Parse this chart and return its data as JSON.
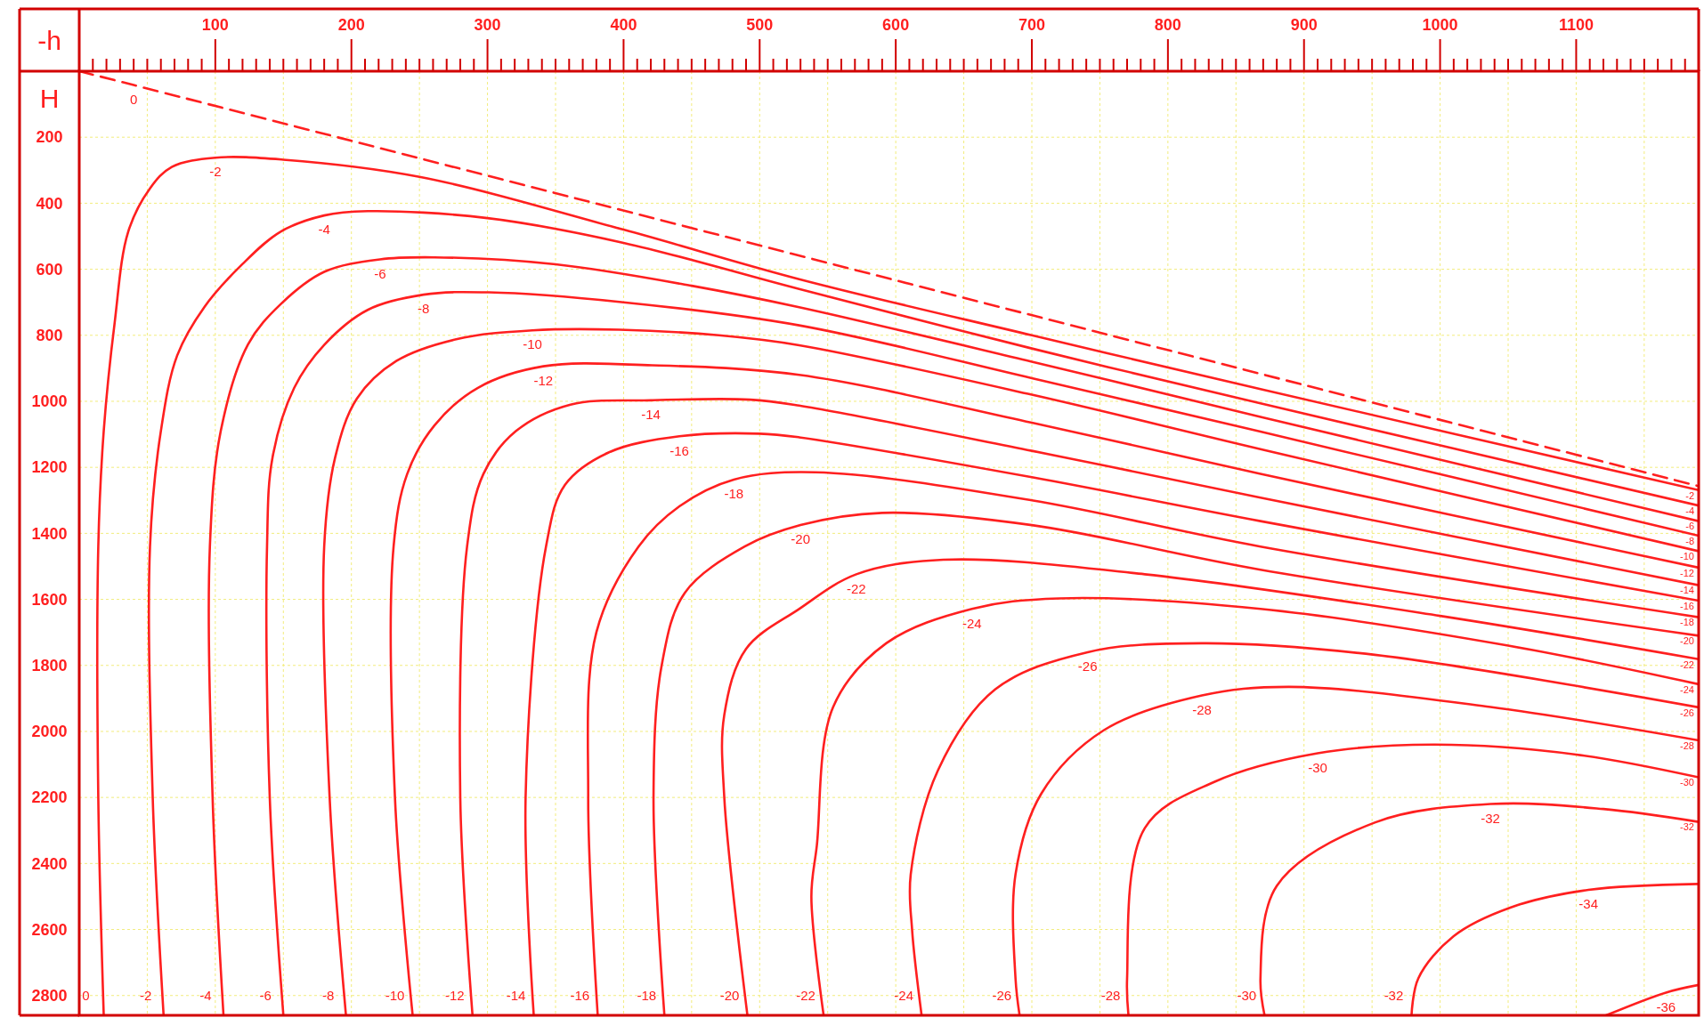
{
  "chart_data": {
    "type": "line",
    "xlabel": "-h",
    "ylabel": "H",
    "xlim": [
      0,
      1190
    ],
    "ylim": [
      2860,
      0
    ],
    "grid": true,
    "xticks": [
      {
        "value": 10,
        "label": null
      },
      {
        "value": 20,
        "label": null
      },
      {
        "value": 30,
        "label": null
      },
      {
        "value": 40,
        "label": null
      },
      {
        "value": 50,
        "label": null
      },
      {
        "value": 60,
        "label": null
      },
      {
        "value": 70,
        "label": null
      },
      {
        "value": 80,
        "label": null
      },
      {
        "value": 90,
        "label": null
      },
      100,
      {
        "value": 110,
        "label": null
      },
      {
        "value": 120,
        "label": null
      },
      {
        "value": 130,
        "label": null
      },
      {
        "value": 140,
        "label": null
      },
      {
        "value": 150,
        "label": null
      },
      {
        "value": 160,
        "label": null
      },
      {
        "value": 170,
        "label": null
      },
      {
        "value": 180,
        "label": null
      },
      {
        "value": 190,
        "label": null
      },
      200,
      {
        "value": 210,
        "label": null
      },
      {
        "value": 220,
        "label": null
      },
      {
        "value": 230,
        "label": null
      },
      {
        "value": 240,
        "label": null
      },
      {
        "value": 250,
        "label": null
      },
      {
        "value": 260,
        "label": null
      },
      {
        "value": 270,
        "label": null
      },
      {
        "value": 280,
        "label": null
      },
      {
        "value": 290,
        "label": null
      },
      300,
      {
        "value": 310,
        "label": null
      },
      {
        "value": 320,
        "label": null
      },
      {
        "value": 330,
        "label": null
      },
      {
        "value": 340,
        "label": null
      },
      {
        "value": 350,
        "label": null
      },
      {
        "value": 360,
        "label": null
      },
      {
        "value": 370,
        "label": null
      },
      {
        "value": 380,
        "label": null
      },
      {
        "value": 390,
        "label": null
      },
      400,
      {
        "value": 410,
        "label": null
      },
      {
        "value": 420,
        "label": null
      },
      {
        "value": 430,
        "label": null
      },
      {
        "value": 440,
        "label": null
      },
      {
        "value": 450,
        "label": null
      },
      {
        "value": 460,
        "label": null
      },
      {
        "value": 470,
        "label": null
      },
      {
        "value": 480,
        "label": null
      },
      {
        "value": 490,
        "label": null
      },
      500,
      {
        "value": 510,
        "label": null
      },
      {
        "value": 520,
        "label": null
      },
      {
        "value": 530,
        "label": null
      },
      {
        "value": 540,
        "label": null
      },
      {
        "value": 550,
        "label": null
      },
      {
        "value": 560,
        "label": null
      },
      {
        "value": 570,
        "label": null
      },
      {
        "value": 580,
        "label": null
      },
      {
        "value": 590,
        "label": null
      },
      600,
      {
        "value": 610,
        "label": null
      },
      {
        "value": 620,
        "label": null
      },
      {
        "value": 630,
        "label": null
      },
      {
        "value": 640,
        "label": null
      },
      {
        "value": 650,
        "label": null
      },
      {
        "value": 660,
        "label": null
      },
      {
        "value": 670,
        "label": null
      },
      {
        "value": 680,
        "label": null
      },
      {
        "value": 690,
        "label": null
      },
      700,
      {
        "value": 710,
        "label": null
      },
      {
        "value": 720,
        "label": null
      },
      {
        "value": 730,
        "label": null
      },
      {
        "value": 740,
        "label": null
      },
      {
        "value": 750,
        "label": null
      },
      {
        "value": 760,
        "label": null
      },
      {
        "value": 770,
        "label": null
      },
      {
        "value": 780,
        "label": null
      },
      {
        "value": 790,
        "label": null
      },
      800,
      {
        "value": 810,
        "label": null
      },
      {
        "value": 820,
        "label": null
      },
      {
        "value": 830,
        "label": null
      },
      {
        "value": 840,
        "label": null
      },
      {
        "value": 850,
        "label": null
      },
      {
        "value": 860,
        "label": null
      },
      {
        "value": 870,
        "label": null
      },
      {
        "value": 880,
        "label": null
      },
      {
        "value": 890,
        "label": null
      },
      900,
      {
        "value": 910,
        "label": null
      },
      {
        "value": 920,
        "label": null
      },
      {
        "value": 930,
        "label": null
      },
      {
        "value": 940,
        "label": null
      },
      {
        "value": 950,
        "label": null
      },
      {
        "value": 960,
        "label": null
      },
      {
        "value": 970,
        "label": null
      },
      {
        "value": 980,
        "label": null
      },
      {
        "value": 990,
        "label": null
      },
      1000,
      {
        "value": 1010,
        "label": null
      },
      {
        "value": 1020,
        "label": null
      },
      {
        "value": 1030,
        "label": null
      },
      {
        "value": 1040,
        "label": null
      },
      {
        "value": 1050,
        "label": null
      },
      {
        "value": 1060,
        "label": null
      },
      {
        "value": 1070,
        "label": null
      },
      {
        "value": 1080,
        "label": null
      },
      {
        "value": 1090,
        "label": null
      },
      1100,
      {
        "value": 1110,
        "label": null
      },
      {
        "value": 1120,
        "label": null
      },
      {
        "value": 1130,
        "label": null
      },
      {
        "value": 1140,
        "label": null
      },
      {
        "value": 1150,
        "label": null
      },
      {
        "value": 1160,
        "label": null
      },
      {
        "value": 1170,
        "label": null
      },
      {
        "value": 1180,
        "label": null
      }
    ],
    "yticks": [
      200,
      400,
      600,
      800,
      1000,
      1200,
      1400,
      1600,
      1800,
      2000,
      2200,
      2400,
      2600,
      2800
    ],
    "series": [
      {
        "color": "#ff1f1f",
        "line_style": "dashed",
        "x": [
          0,
          40,
          1190
        ],
        "values": [
          0,
          42,
          1257
        ]
      },
      {
        "color": "#ff1f1f",
        "x": [
          18,
          14,
          14,
          18,
          26,
          36,
          52,
          68,
          100,
          150,
          250,
          400,
          529,
          700,
          868,
          1190
        ],
        "values": [
          2860,
          2200,
          1440,
          1090,
          763,
          486,
          355,
          290,
          262,
          268,
          320,
          480,
          630,
          800,
          963,
          1269
        ]
      },
      {
        "color": "#ff1f1f",
        "x": [
          62,
          54,
          52,
          60,
          72,
          92,
          120,
          148,
          180,
          212,
          300,
          400,
          529,
          700,
          868,
          1190
        ],
        "values": [
          2860,
          2200,
          1440,
          1090,
          861,
          714,
          584,
          486,
          437,
          424,
          445,
          520,
          660,
          840,
          1006,
          1316
        ]
      },
      {
        "color": "#ff1f1f",
        "x": [
          106,
          98,
          96,
          104,
          124,
          148,
          180,
          221,
          261,
          350,
          450,
          529,
          700,
          868,
          1190
        ],
        "values": [
          2860,
          2200,
          1440,
          1090,
          828,
          706,
          608,
          570,
          564,
          585,
          650,
          715,
          880,
          1047,
          1363
        ]
      },
      {
        "color": "#ff1f1f",
        "x": [
          150,
          140,
          138,
          142,
          158,
          180,
          212,
          253,
          301,
          400,
          529,
          700,
          868,
          1190
        ],
        "values": [
          2860,
          2200,
          1440,
          1171,
          959,
          829,
          723,
          677,
          670,
          700,
          770,
          930,
          1092,
          1407
        ]
      },
      {
        "color": "#ff1f1f",
        "x": [
          196,
          184,
          180,
          188,
          204,
          233,
          277,
          333,
          397,
          470,
          529,
          700,
          868,
          1190
        ],
        "values": [
          2860,
          2200,
          1440,
          1171,
          992,
          878,
          812,
          785,
          783,
          800,
          830,
          980,
          1145,
          1454
        ]
      },
      {
        "color": "#ff1f1f",
        "x": [
          245,
          232,
          231,
          241,
          261,
          293,
          341,
          421,
          529,
          700,
          868,
          1190
        ],
        "values": [
          2860,
          2200,
          1440,
          1220,
          1073,
          959,
          894,
          891,
          920,
          1065,
          1220,
          1504
        ]
      },
      {
        "color": "#ff1f1f",
        "x": [
          289,
          280,
          285,
          297,
          321,
          361,
          420,
          493,
          529,
          700,
          868,
          1190
        ],
        "values": [
          2860,
          2200,
          1440,
          1220,
          1090,
          1010,
          997,
          995,
          1013,
          1150,
          1292,
          1557
        ]
      },
      {
        "color": "#ff1f1f",
        "x": [
          334,
          328,
          343,
          357,
          389,
          441,
          500,
          529,
          700,
          868,
          1190
        ],
        "values": [
          2860,
          2200,
          1440,
          1253,
          1155,
          1106,
          1098,
          1109,
          1230,
          1363,
          1604
        ]
      },
      {
        "color": "#ff1f1f",
        "x": [
          381,
          374,
          380,
          411,
          441,
          481,
          541,
          700,
          868,
          1190
        ],
        "values": [
          2860,
          2200,
          1700,
          1440,
          1318,
          1237,
          1215,
          1300,
          1440,
          1654
        ]
      },
      {
        "color": "#ff1f1f",
        "x": [
          430,
          422,
          428,
          445,
          489,
          530,
          590,
          700,
          868,
          1190
        ],
        "values": [
          2860,
          2200,
          1800,
          1580,
          1440,
          1375,
          1338,
          1375,
          1510,
          1710
        ]
      },
      {
        "color": "#ff1f1f",
        "x": [
          491,
          474,
          474,
          490,
          529,
          571,
          635,
          783,
          1000,
          1190
        ],
        "values": [
          2860,
          2200,
          1950,
          1750,
          1629,
          1524,
          1480,
          1524,
          1650,
          1781
        ]
      },
      {
        "color": "#ff1f1f",
        "x": [
          547,
          538,
          542,
          554,
          593,
          656,
          720,
          868,
          1050,
          1190
        ],
        "values": [
          2860,
          2500,
          2346,
          1926,
          1733,
          1629,
          1597,
          1629,
          1740,
          1857
        ]
      },
      {
        "color": "#ff1f1f",
        "x": [
          619,
          612,
          611,
          631,
          673,
          741,
          825,
          952,
          1190
        ],
        "values": [
          2860,
          2600,
          2433,
          2118,
          1873,
          1760,
          1733,
          1768,
          1927
        ]
      },
      {
        "color": "#ff1f1f",
        "x": [
          691,
          688,
          688,
          707,
          753,
          825,
          889,
          1037,
          1190
        ],
        "values": [
          2860,
          2748,
          2433,
          2188,
          1996,
          1891,
          1865,
          1926,
          2027
        ]
      },
      {
        "color": "#ff1f1f",
        "x": [
          771,
          770,
          783,
          834,
          910,
          995,
          1100,
          1190
        ],
        "values": [
          2860,
          2748,
          2293,
          2153,
          2066,
          2040,
          2070,
          2139
        ]
      },
      {
        "color": "#ff1f1f",
        "x": [
          871,
          868,
          880,
          952,
          1037,
          1120,
          1190
        ],
        "values": [
          2860,
          2748,
          2468,
          2276,
          2220,
          2235,
          2274
        ]
      },
      {
        "color": "#ff1f1f",
        "x": [
          979,
          984,
          1010,
          1052,
          1109,
          1190
        ],
        "values": [
          2860,
          2748,
          2620,
          2533,
          2480,
          2462
        ]
      },
      {
        "color": "#ff1f1f",
        "x": [
          1122,
          1166,
          1190
        ],
        "values": [
          2860,
          2791,
          2768
        ]
      }
    ],
    "annotations": [
      {
        "text": "0",
        "x": 40,
        "y": 42
      },
      {
        "text": "-2",
        "x": 100,
        "y": 262
      },
      {
        "text": "-4",
        "x": 180,
        "y": 437
      },
      {
        "text": "-6",
        "x": 221,
        "y": 570
      },
      {
        "text": "-8",
        "x": 253,
        "y": 677
      },
      {
        "text": "-10",
        "x": 333,
        "y": 785
      },
      {
        "text": "-12",
        "x": 341,
        "y": 894
      },
      {
        "text": "-14",
        "x": 420,
        "y": 997
      },
      {
        "text": "-16",
        "x": 441,
        "y": 1106
      },
      {
        "text": "-18",
        "x": 481,
        "y": 1237
      },
      {
        "text": "-20",
        "x": 530,
        "y": 1375
      },
      {
        "text": "-22",
        "x": 571,
        "y": 1524
      },
      {
        "text": "-24",
        "x": 656,
        "y": 1629
      },
      {
        "text": "-26",
        "x": 741,
        "y": 1760
      },
      {
        "text": "-28",
        "x": 825,
        "y": 1891
      },
      {
        "text": "-30",
        "x": 910,
        "y": 2066
      },
      {
        "text": "-32",
        "x": 1037,
        "y": 2220
      },
      {
        "text": "-34",
        "x": 1109,
        "y": 2480
      },
      {
        "text": "-36",
        "x": 1166,
        "y": 2791
      },
      {
        "text": "0",
        "x": 18,
        "y": 2860
      },
      {
        "text": "-2",
        "x": 62,
        "y": 2860
      },
      {
        "text": "-4",
        "x": 106,
        "y": 2860
      },
      {
        "text": "-6",
        "x": 150,
        "y": 2860
      },
      {
        "text": "-8",
        "x": 196,
        "y": 2860
      },
      {
        "text": "-10",
        "x": 245,
        "y": 2860
      },
      {
        "text": "-12",
        "x": 289,
        "y": 2860
      },
      {
        "text": "-14",
        "x": 334,
        "y": 2860
      },
      {
        "text": "-16",
        "x": 381,
        "y": 2860
      },
      {
        "text": "-18",
        "x": 430,
        "y": 2860
      },
      {
        "text": "-20",
        "x": 491,
        "y": 2860
      },
      {
        "text": "-22",
        "x": 547,
        "y": 2860
      },
      {
        "text": "-24",
        "x": 619,
        "y": 2860
      },
      {
        "text": "-26",
        "x": 691,
        "y": 2860
      },
      {
        "text": "-28",
        "x": 771,
        "y": 2860
      },
      {
        "text": "-30",
        "x": 871,
        "y": 2860
      },
      {
        "text": "-32",
        "x": 979,
        "y": 2860
      },
      {
        "text": "-2",
        "x": 1190,
        "y": 1269
      },
      {
        "text": "-4",
        "x": 1190,
        "y": 1316
      },
      {
        "text": "-6",
        "x": 1190,
        "y": 1363
      },
      {
        "text": "-8",
        "x": 1190,
        "y": 1407
      },
      {
        "text": "-10",
        "x": 1190,
        "y": 1454
      },
      {
        "text": "-12",
        "x": 1190,
        "y": 1504
      },
      {
        "text": "-14",
        "x": 1190,
        "y": 1557
      },
      {
        "text": "-16",
        "x": 1190,
        "y": 1604
      },
      {
        "text": "-18",
        "x": 1190,
        "y": 1654
      },
      {
        "text": "-20",
        "x": 1190,
        "y": 1710
      },
      {
        "text": "-22",
        "x": 1190,
        "y": 1781
      },
      {
        "text": "-24",
        "x": 1190,
        "y": 1857
      },
      {
        "text": "-26",
        "x": 1190,
        "y": 1927
      },
      {
        "text": "-28",
        "x": 1190,
        "y": 2027
      },
      {
        "text": "-30",
        "x": 1190,
        "y": 2139
      },
      {
        "text": "-32",
        "x": 1190,
        "y": 2274
      }
    ]
  }
}
